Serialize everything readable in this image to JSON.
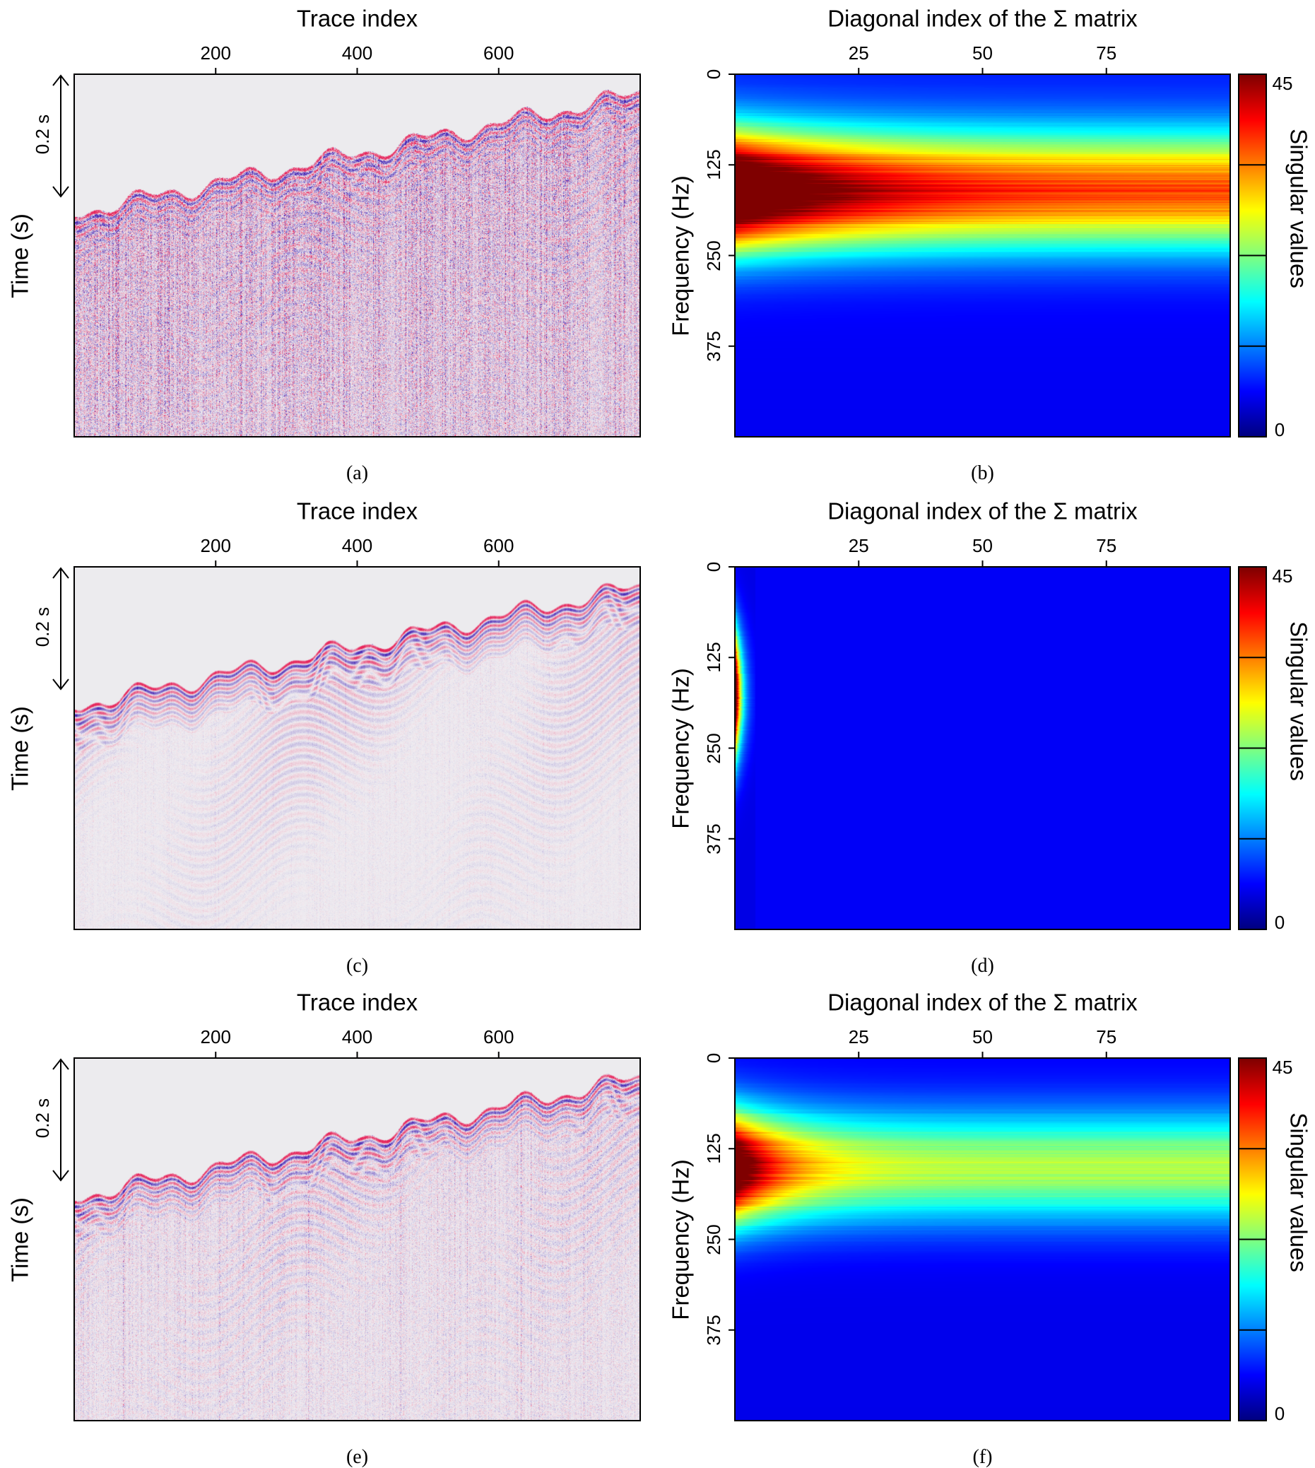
{
  "figure": {
    "seismic_panels": [
      {
        "caption": "(a)",
        "xlabel": "Trace index",
        "xticks": [
          "200",
          "400",
          "600"
        ],
        "ylabel": "Time (s)",
        "scale_label": "0.2 s",
        "noise_level": 0.95
      },
      {
        "caption": "(c)",
        "xlabel": "Trace index",
        "xticks": [
          "200",
          "400",
          "600"
        ],
        "ylabel": "Time (s)",
        "scale_label": "0.2 s",
        "noise_level": 0.12
      },
      {
        "caption": "(e)",
        "xlabel": "Trace index",
        "xticks": [
          "200",
          "400",
          "600"
        ],
        "ylabel": "Time (s)",
        "scale_label": "0.2 s",
        "noise_level": 0.35
      }
    ],
    "spectrum_panels": [
      {
        "caption": "(b)",
        "xlabel": "Diagonal index of the Σ matrix",
        "xticks": [
          "25",
          "50",
          "75"
        ],
        "ylabel": "Frequency (Hz)",
        "yticks": [
          "0",
          "125",
          "250",
          "375"
        ],
        "colorbar_label": "Singular values",
        "colorbar_ticks": [
          "45",
          "0"
        ]
      },
      {
        "caption": "(d)",
        "xlabel": "Diagonal index of the Σ matrix",
        "xticks": [
          "25",
          "50",
          "75"
        ],
        "ylabel": "Frequency (Hz)",
        "yticks": [
          "0",
          "125",
          "250",
          "375"
        ],
        "colorbar_label": "Singular values",
        "colorbar_ticks": [
          "45",
          "0"
        ]
      },
      {
        "caption": "(f)",
        "xlabel": "Diagonal index of the Σ matrix",
        "xticks": [
          "25",
          "50",
          "75"
        ],
        "ylabel": "Frequency (Hz)",
        "yticks": [
          "0",
          "125",
          "250",
          "375"
        ],
        "colorbar_label": "Singular values",
        "colorbar_ticks": [
          "45",
          "0"
        ]
      }
    ]
  },
  "chart_data": [
    {
      "type": "heatmap",
      "panel": "(a)",
      "xlabel": "Trace index",
      "ylabel": "Time (s)",
      "xlim": [
        0,
        800
      ],
      "xticks": [
        200,
        400,
        600
      ],
      "colormap": "seismic red-white-blue",
      "annotation": "0.2 s"
    },
    {
      "type": "heatmap",
      "panel": "(b)",
      "xlabel": "Diagonal index of the Σ matrix",
      "ylabel": "Frequency (Hz)",
      "xlim": [
        0,
        100
      ],
      "ylim": [
        0,
        500
      ],
      "xticks": [
        25,
        50,
        75
      ],
      "yticks": [
        0,
        125,
        250,
        375
      ],
      "colorbar": {
        "label": "Singular values",
        "min": 0,
        "max": 45,
        "colormap": "jet"
      },
      "profile": {
        "peak_frequency": 160,
        "peak_width": 80,
        "max_value": 60,
        "decay_index": 22,
        "floor_ratio": 0.55,
        "background": 0.05
      }
    },
    {
      "type": "heatmap",
      "panel": "(c)",
      "xlabel": "Trace index",
      "ylabel": "Time (s)",
      "xlim": [
        0,
        800
      ],
      "xticks": [
        200,
        400,
        600
      ],
      "colormap": "seismic red-white-blue",
      "annotation": "0.2 s"
    },
    {
      "type": "heatmap",
      "panel": "(d)",
      "xlabel": "Diagonal index of the Σ matrix",
      "ylabel": "Frequency (Hz)",
      "xlim": [
        0,
        100
      ],
      "ylim": [
        0,
        500
      ],
      "xticks": [
        25,
        50,
        75
      ],
      "yticks": [
        0,
        125,
        250,
        375
      ],
      "colorbar": {
        "label": "Singular values",
        "min": 0,
        "max": 45,
        "colormap": "jet"
      },
      "profile": {
        "peak_frequency": 175,
        "peak_width": 85,
        "max_value": 60,
        "decay_index": 1.2,
        "floor_ratio": 0,
        "background": 0
      }
    },
    {
      "type": "heatmap",
      "panel": "(e)",
      "xlabel": "Trace index",
      "ylabel": "Time (s)",
      "xlim": [
        0,
        800
      ],
      "xticks": [
        200,
        400,
        600
      ],
      "colormap": "seismic red-white-blue",
      "annotation": "0.2 s"
    },
    {
      "type": "heatmap",
      "panel": "(f)",
      "xlabel": "Diagonal index of the Σ matrix",
      "ylabel": "Frequency (Hz)",
      "xlim": [
        0,
        100
      ],
      "ylim": [
        0,
        500
      ],
      "xticks": [
        25,
        50,
        75
      ],
      "yticks": [
        0,
        125,
        250,
        375
      ],
      "colorbar": {
        "label": "Singular values",
        "min": 0,
        "max": 45,
        "colormap": "jet"
      },
      "profile": {
        "peak_frequency": 150,
        "peak_width": 75,
        "max_value": 55,
        "decay_index": 10,
        "floor_ratio": 0.4,
        "background": 0.02
      }
    }
  ]
}
